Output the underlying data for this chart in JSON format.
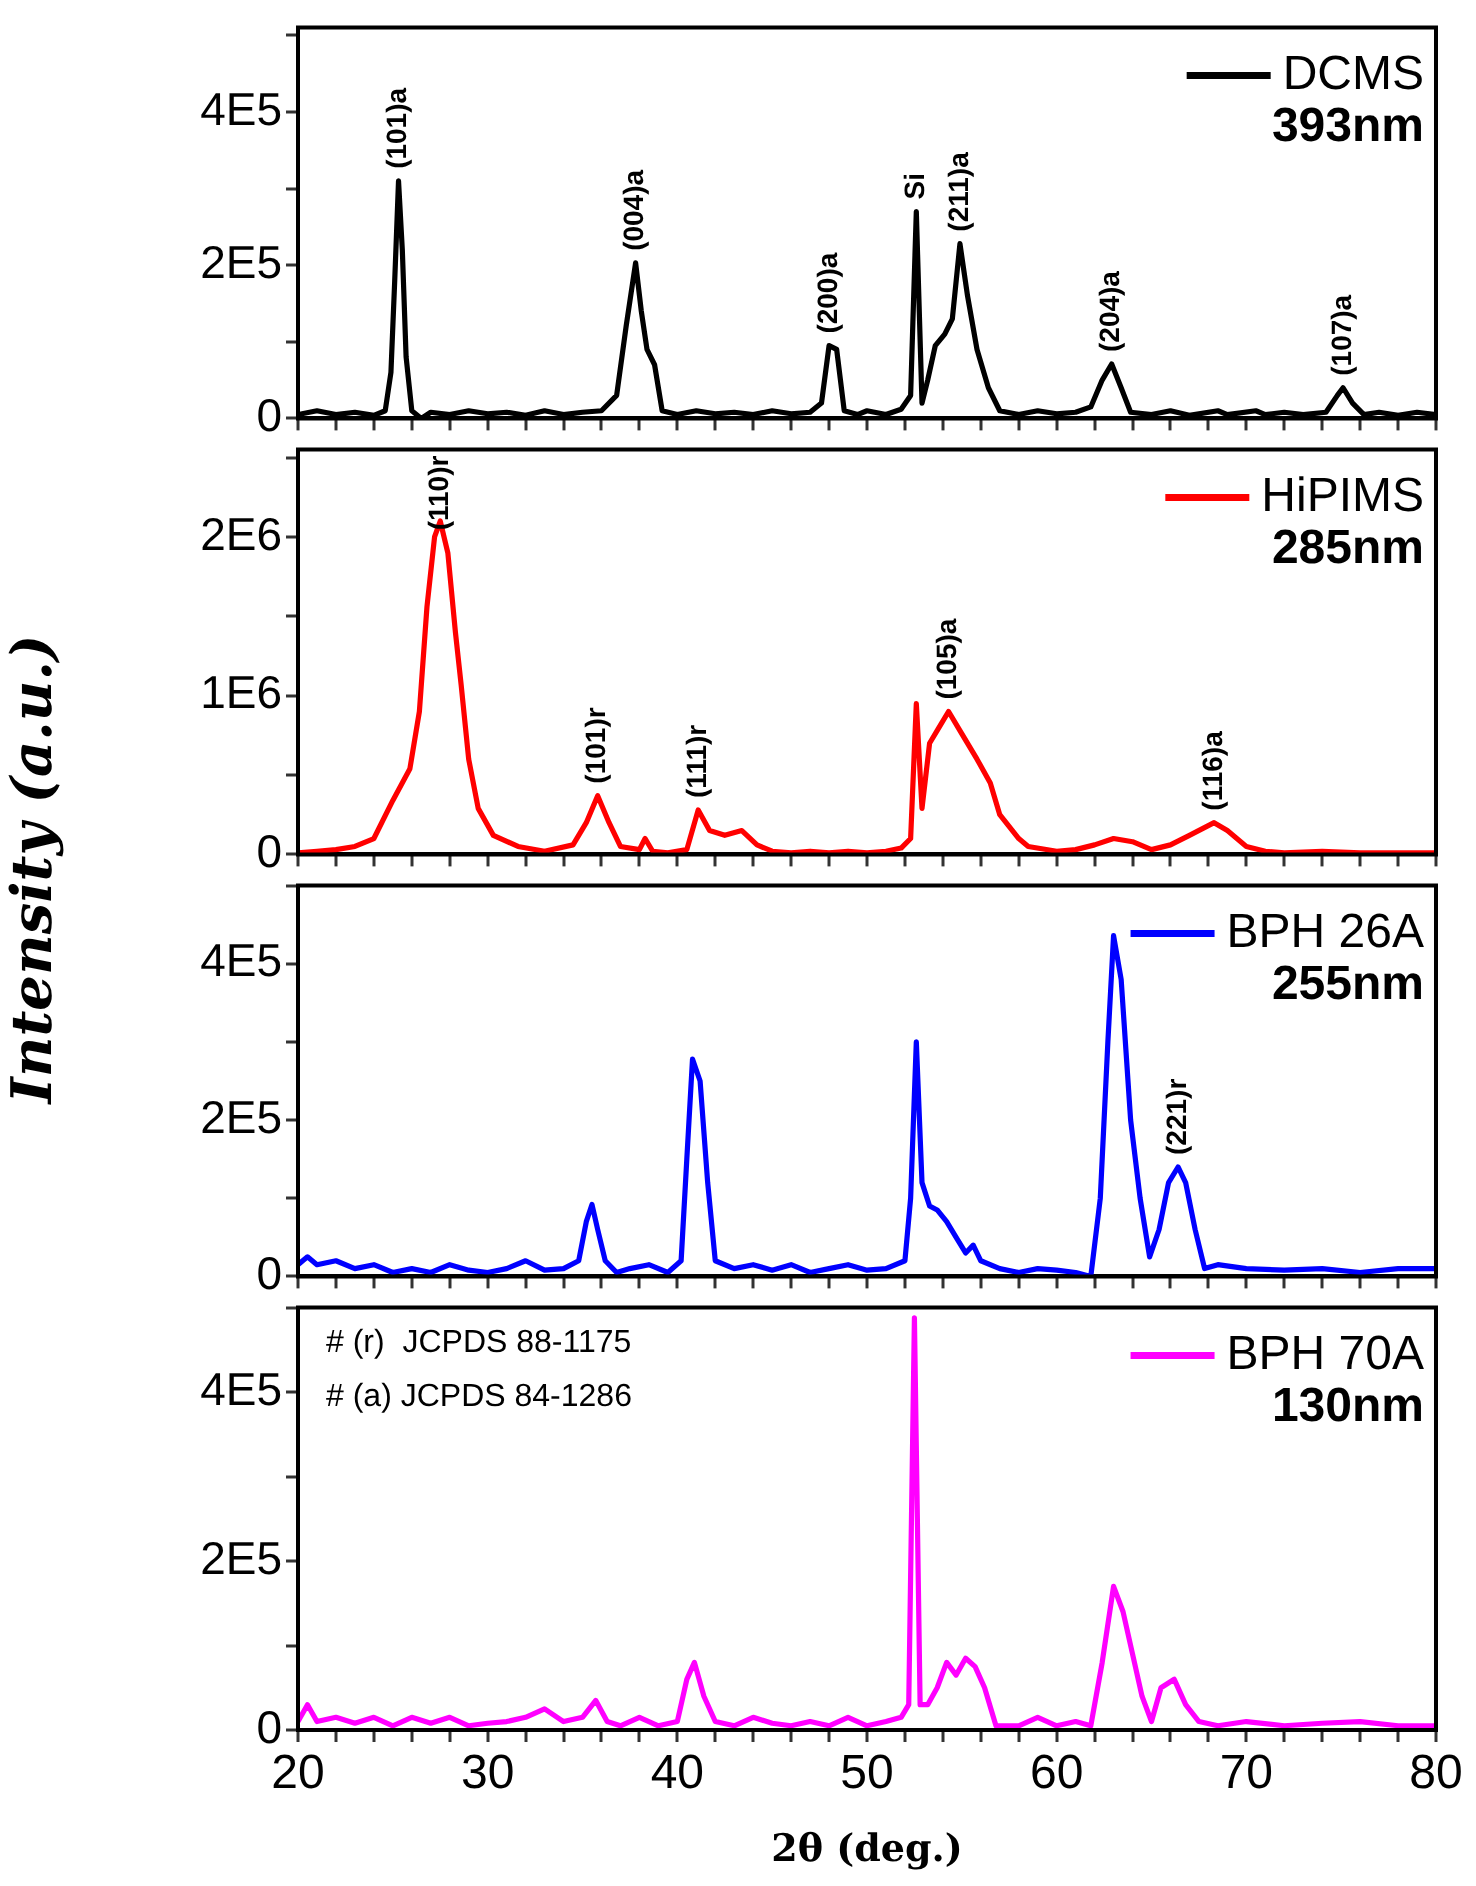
{
  "chart_data": [
    {
      "type": "line",
      "ylabel": "Intensity (a.u.)",
      "legend": "top right",
      "marker": "none",
      "line_style": "solid",
      "tick_labels": "y",
      "xlim": [
        20,
        80
      ],
      "xticks": [
        20,
        {
          "value": 22,
          "label": null
        },
        {
          "value": 24,
          "label": null
        },
        {
          "value": 26,
          "label": null
        },
        {
          "value": 28,
          "label": null
        },
        30,
        {
          "value": 32,
          "label": null
        },
        {
          "value": 34,
          "label": null
        },
        {
          "value": 36,
          "label": null
        },
        {
          "value": 38,
          "label": null
        },
        40,
        {
          "value": 42,
          "label": null
        },
        {
          "value": 44,
          "label": null
        },
        {
          "value": 46,
          "label": null
        },
        {
          "value": 48,
          "label": null
        },
        50,
        {
          "value": 52,
          "label": null
        },
        {
          "value": 54,
          "label": null
        },
        {
          "value": 56,
          "label": null
        },
        {
          "value": 58,
          "label": null
        },
        60,
        {
          "value": 62,
          "label": null
        },
        {
          "value": 64,
          "label": null
        },
        {
          "value": 66,
          "label": null
        },
        {
          "value": 68,
          "label": null
        },
        70,
        {
          "value": 72,
          "label": null
        },
        {
          "value": 74,
          "label": null
        },
        {
          "value": 76,
          "label": null
        },
        {
          "value": 78,
          "label": null
        },
        80
      ],
      "ylim": [
        0,
        510000
      ],
      "yticks": [
        {
          "value": 0,
          "label": "0"
        },
        {
          "value": 100000,
          "label": null
        },
        {
          "value": 200000,
          "label": "2E5"
        },
        {
          "value": 300000,
          "label": null
        },
        {
          "value": 400000,
          "label": "4E5"
        },
        {
          "value": 500000,
          "label": null
        }
      ],
      "x": [
        20,
        21,
        22,
        23,
        24,
        24.6,
        24.9,
        25.1,
        25.3,
        25.5,
        25.7,
        26,
        26.5,
        27,
        28,
        29,
        30,
        31,
        32,
        33,
        34,
        35,
        36,
        36.8,
        37.3,
        37.8,
        38.1,
        38.4,
        38.8,
        39.2,
        40,
        41,
        42,
        43,
        44,
        45,
        46,
        47,
        47.6,
        48,
        48.4,
        48.8,
        49.5,
        50,
        51,
        51.8,
        52.3,
        52.6,
        52.9,
        53.2,
        53.6,
        54.1,
        54.5,
        54.9,
        55.3,
        55.8,
        56.4,
        57,
        58,
        59,
        60,
        61,
        61.8,
        62.4,
        62.9,
        63.4,
        63.9,
        65,
        66,
        67,
        68.5,
        69,
        70.5,
        71,
        72,
        73,
        74.2,
        74.8,
        75.1,
        75.6,
        76.2,
        77,
        78,
        79,
        80
      ],
      "series": [
        {
          "name": "DCMS",
          "color": "#000000",
          "values": [
            5000,
            10000,
            5000,
            8000,
            4000,
            10000,
            60000,
            180000,
            310000,
            220000,
            80000,
            10000,
            0,
            8000,
            5000,
            10000,
            6000,
            8000,
            4000,
            10000,
            5000,
            8000,
            10000,
            30000,
            120000,
            203000,
            140000,
            90000,
            70000,
            10000,
            5000,
            10000,
            6000,
            8000,
            5000,
            10000,
            6000,
            8000,
            20000,
            95000,
            90000,
            10000,
            5000,
            10000,
            5000,
            12000,
            30000,
            270000,
            20000,
            50000,
            95000,
            110000,
            130000,
            228000,
            160000,
            90000,
            40000,
            10000,
            5000,
            10000,
            6000,
            8000,
            15000,
            50000,
            71000,
            40000,
            8000,
            5000,
            10000,
            4000,
            10000,
            5000,
            10000,
            5000,
            8000,
            5000,
            8000,
            30000,
            40000,
            20000,
            5000,
            8000,
            4000,
            8000,
            5000
          ]
        }
      ],
      "annotations": [
        "393nm",
        {
          "text": "(101)a",
          "x": 25.3,
          "y": 310000
        },
        {
          "text": "(004)a",
          "x": 37.8,
          "y": 203000
        },
        {
          "text": "(200)a",
          "x": 48,
          "y": 95000
        },
        {
          "text": "Si",
          "x": 52.6,
          "y": 270000
        },
        {
          "text": "(211)a",
          "x": 54.9,
          "y": 228000
        },
        {
          "text": "(204)a",
          "x": 62.9,
          "y": 71000
        },
        {
          "text": "(107)a",
          "x": 75.1,
          "y": 40000
        }
      ]
    },
    {
      "type": "line",
      "legend": "top right",
      "marker": "none",
      "line_style": "solid",
      "tick_labels": "y",
      "xlim": [
        20,
        80
      ],
      "xticks": [
        20,
        {
          "value": 22,
          "label": null
        },
        {
          "value": 24,
          "label": null
        },
        {
          "value": 26,
          "label": null
        },
        {
          "value": 28,
          "label": null
        },
        30,
        {
          "value": 32,
          "label": null
        },
        {
          "value": 34,
          "label": null
        },
        {
          "value": 36,
          "label": null
        },
        {
          "value": 38,
          "label": null
        },
        40,
        {
          "value": 42,
          "label": null
        },
        {
          "value": 44,
          "label": null
        },
        {
          "value": 46,
          "label": null
        },
        {
          "value": 48,
          "label": null
        },
        50,
        {
          "value": 52,
          "label": null
        },
        {
          "value": 54,
          "label": null
        },
        {
          "value": 56,
          "label": null
        },
        {
          "value": 58,
          "label": null
        },
        60,
        {
          "value": 62,
          "label": null
        },
        {
          "value": 64,
          "label": null
        },
        {
          "value": 66,
          "label": null
        },
        {
          "value": 68,
          "label": null
        },
        70,
        {
          "value": 72,
          "label": null
        },
        {
          "value": 74,
          "label": null
        },
        {
          "value": 76,
          "label": null
        },
        {
          "value": 78,
          "label": null
        },
        80
      ],
      "ylim": [
        0,
        2550000
      ],
      "yticks": [
        {
          "value": 0,
          "label": "0"
        },
        {
          "value": 500000,
          "label": null
        },
        {
          "value": 1000000,
          "label": "1E6"
        },
        {
          "value": 1500000,
          "label": null
        },
        {
          "value": 2000000,
          "label": "2E6"
        },
        {
          "value": 2500000,
          "label": null
        }
      ],
      "x": [
        20,
        21,
        22,
        23,
        24,
        25,
        25.9,
        26.4,
        26.8,
        27.2,
        27.5,
        27.9,
        28.3,
        28.6,
        29,
        29.5,
        30.3,
        31.6,
        33,
        34.5,
        35.2,
        35.8,
        36.4,
        37,
        38,
        38.3,
        38.7,
        39.5,
        40.5,
        41.1,
        41.7,
        42.5,
        43.4,
        44.2,
        45,
        46,
        47,
        48,
        49,
        50,
        51,
        51.8,
        52.3,
        52.6,
        52.9,
        53.3,
        53.8,
        54.3,
        54.9,
        55.8,
        56.5,
        57,
        58,
        58.5,
        60,
        61,
        62,
        63,
        64,
        65,
        66,
        67,
        68.3,
        69,
        70,
        71,
        72,
        74,
        76,
        78,
        80
      ],
      "series": [
        {
          "name": "HiPIMS",
          "color": "#ff0000",
          "values": [
            10000,
            20000,
            30000,
            50000,
            100000,
            340000,
            540000,
            900000,
            1560000,
            2000000,
            2100000,
            1900000,
            1400000,
            1070000,
            600000,
            290000,
            120000,
            50000,
            20000,
            60000,
            200000,
            370000,
            200000,
            50000,
            30000,
            100000,
            20000,
            10000,
            30000,
            280000,
            150000,
            120000,
            150000,
            60000,
            20000,
            10000,
            20000,
            10000,
            20000,
            10000,
            20000,
            40000,
            100000,
            950000,
            290000,
            700000,
            800000,
            900000,
            780000,
            600000,
            450000,
            250000,
            100000,
            50000,
            20000,
            30000,
            60000,
            100000,
            80000,
            30000,
            60000,
            120000,
            200000,
            150000,
            50000,
            20000,
            10000,
            20000,
            10000,
            10000,
            10000
          ]
        }
      ],
      "annotations": [
        "285nm",
        {
          "text": "(110)r",
          "x": 27.5,
          "y": 2100000
        },
        {
          "text": "(101)r",
          "x": 35.8,
          "y": 370000
        },
        {
          "text": "(111)r",
          "x": 41.1,
          "y": 280000
        },
        {
          "text": "(105)a",
          "x": 54.3,
          "y": 900000
        },
        {
          "text": "(116)a",
          "x": 68.3,
          "y": 200000
        }
      ]
    },
    {
      "type": "line",
      "legend": "top right",
      "marker": "none",
      "line_style": "solid",
      "tick_labels": "y",
      "xlim": [
        20,
        80
      ],
      "xticks": [
        20,
        {
          "value": 22,
          "label": null
        },
        {
          "value": 24,
          "label": null
        },
        {
          "value": 26,
          "label": null
        },
        {
          "value": 28,
          "label": null
        },
        30,
        {
          "value": 32,
          "label": null
        },
        {
          "value": 34,
          "label": null
        },
        {
          "value": 36,
          "label": null
        },
        {
          "value": 38,
          "label": null
        },
        40,
        {
          "value": 42,
          "label": null
        },
        {
          "value": 44,
          "label": null
        },
        {
          "value": 46,
          "label": null
        },
        {
          "value": 48,
          "label": null
        },
        50,
        {
          "value": 52,
          "label": null
        },
        {
          "value": 54,
          "label": null
        },
        {
          "value": 56,
          "label": null
        },
        {
          "value": 58,
          "label": null
        },
        60,
        {
          "value": 62,
          "label": null
        },
        {
          "value": 64,
          "label": null
        },
        {
          "value": 66,
          "label": null
        },
        {
          "value": 68,
          "label": null
        },
        70,
        {
          "value": 72,
          "label": null
        },
        {
          "value": 74,
          "label": null
        },
        {
          "value": 76,
          "label": null
        },
        {
          "value": 78,
          "label": null
        },
        80
      ],
      "ylim": [
        0,
        500000
      ],
      "yticks": [
        {
          "value": 0,
          "label": "0"
        },
        {
          "value": 100000,
          "label": null
        },
        {
          "value": 200000,
          "label": "2E5"
        },
        {
          "value": 300000,
          "label": null
        },
        {
          "value": 400000,
          "label": "4E5"
        },
        {
          "value": 500000,
          "label": null
        }
      ],
      "x": [
        20,
        20.5,
        21,
        22,
        23,
        24,
        25,
        26,
        27,
        28,
        29,
        30,
        31,
        32,
        33,
        34,
        34.8,
        35.2,
        35.5,
        35.8,
        36.2,
        36.8,
        37.5,
        38.5,
        39.5,
        40.2,
        40.5,
        40.8,
        41.2,
        41.6,
        42,
        43,
        44,
        45,
        46,
        47,
        48,
        49,
        50,
        51,
        52,
        52.3,
        52.6,
        52.9,
        53.3,
        53.7,
        54.2,
        54.7,
        55.2,
        55.6,
        56,
        57,
        58,
        59,
        60,
        61,
        61.8,
        62.3,
        62.7,
        63,
        63.4,
        63.9,
        64.4,
        64.9,
        65.4,
        65.9,
        66.4,
        66.8,
        67.3,
        67.8,
        68.5,
        70,
        72,
        74,
        76,
        78,
        80
      ],
      "series": [
        {
          "name": "BPH 26A",
          "color": "#0000ff",
          "values": [
            15000,
            25000,
            15000,
            20000,
            10000,
            15000,
            5000,
            10000,
            5000,
            15000,
            8000,
            5000,
            10000,
            20000,
            8000,
            10000,
            20000,
            70000,
            92000,
            60000,
            20000,
            5000,
            10000,
            15000,
            5000,
            20000,
            150000,
            278000,
            250000,
            120000,
            20000,
            10000,
            15000,
            8000,
            15000,
            5000,
            10000,
            15000,
            8000,
            10000,
            20000,
            100000,
            300000,
            120000,
            90000,
            85000,
            70000,
            50000,
            30000,
            40000,
            20000,
            10000,
            5000,
            10000,
            8000,
            5000,
            0,
            100000,
            300000,
            436000,
            380000,
            200000,
            100000,
            25000,
            60000,
            120000,
            140000,
            120000,
            60000,
            10000,
            15000,
            10000,
            8000,
            10000,
            5000,
            10000,
            10000
          ]
        }
      ],
      "annotations": [
        "255nm",
        {
          "text": "(221)r",
          "x": 66.4,
          "y": 140000
        }
      ]
    },
    {
      "type": "line",
      "xlabel": "2θ (deg.)",
      "legend": "top right",
      "marker": "none",
      "line_style": "solid",
      "xlim": [
        20,
        80
      ],
      "xticks": [
        20,
        {
          "value": 22,
          "label": null
        },
        {
          "value": 24,
          "label": null
        },
        {
          "value": 26,
          "label": null
        },
        {
          "value": 28,
          "label": null
        },
        30,
        {
          "value": 32,
          "label": null
        },
        {
          "value": 34,
          "label": null
        },
        {
          "value": 36,
          "label": null
        },
        {
          "value": 38,
          "label": null
        },
        40,
        {
          "value": 42,
          "label": null
        },
        {
          "value": 44,
          "label": null
        },
        {
          "value": 46,
          "label": null
        },
        {
          "value": 48,
          "label": null
        },
        50,
        {
          "value": 52,
          "label": null
        },
        {
          "value": 54,
          "label": null
        },
        {
          "value": 56,
          "label": null
        },
        {
          "value": 58,
          "label": null
        },
        60,
        {
          "value": 62,
          "label": null
        },
        {
          "value": 64,
          "label": null
        },
        {
          "value": 66,
          "label": null
        },
        {
          "value": 68,
          "label": null
        },
        70,
        {
          "value": 72,
          "label": null
        },
        {
          "value": 74,
          "label": null
        },
        {
          "value": 76,
          "label": null
        },
        {
          "value": 78,
          "label": null
        },
        80
      ],
      "ylim": [
        0,
        500000
      ],
      "yticks": [
        {
          "value": 0,
          "label": "0"
        },
        {
          "value": 100000,
          "label": null
        },
        {
          "value": 200000,
          "label": "2E5"
        },
        {
          "value": 300000,
          "label": null
        },
        {
          "value": 400000,
          "label": "4E5"
        },
        {
          "value": 500000,
          "label": null
        }
      ],
      "x": [
        20,
        20.5,
        21,
        22,
        23,
        24,
        25,
        26,
        27,
        28,
        29,
        30,
        31,
        32,
        33,
        34,
        35,
        35.7,
        36.3,
        37,
        38,
        39,
        40,
        40.5,
        40.9,
        41.4,
        42,
        43,
        44,
        45,
        46,
        47,
        48,
        49,
        50,
        51,
        51.8,
        52.2,
        52.5,
        52.8,
        53.2,
        53.7,
        54.2,
        54.7,
        55.2,
        55.7,
        56.2,
        56.8,
        58,
        59,
        60,
        61,
        61.8,
        62.4,
        63,
        63.5,
        64,
        64.5,
        65,
        65.5,
        66.2,
        66.8,
        67.5,
        68.5,
        70,
        72,
        74,
        76,
        78,
        80
      ],
      "series": [
        {
          "name": "BPH 70A",
          "color": "#ff00ff",
          "values": [
            10000,
            30000,
            10000,
            15000,
            8000,
            15000,
            5000,
            15000,
            8000,
            15000,
            5000,
            8000,
            10000,
            15000,
            25000,
            10000,
            15000,
            35000,
            10000,
            5000,
            15000,
            5000,
            10000,
            60000,
            80000,
            40000,
            10000,
            5000,
            15000,
            8000,
            5000,
            10000,
            5000,
            15000,
            5000,
            10000,
            15000,
            30000,
            488000,
            30000,
            30000,
            50000,
            80000,
            65000,
            85000,
            75000,
            50000,
            5000,
            5000,
            15000,
            5000,
            10000,
            5000,
            80000,
            170000,
            140000,
            90000,
            40000,
            10000,
            50000,
            60000,
            30000,
            10000,
            5000,
            10000,
            5000,
            8000,
            10000,
            5000,
            5000
          ]
        }
      ],
      "annotations": [
        "130nm",
        "# (r)  JCPDS 88-1175",
        "# (a) JCPDS 84-1286"
      ]
    }
  ]
}
